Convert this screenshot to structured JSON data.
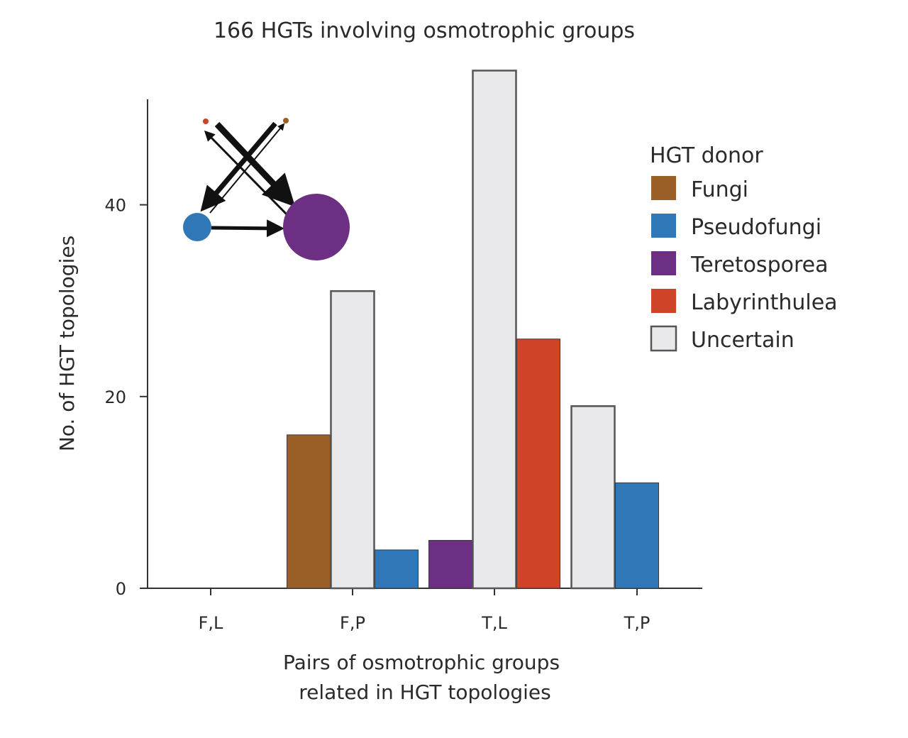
{
  "chart_data": {
    "type": "bar",
    "title": "166 HGTs involving osmotrophic groups",
    "xlabel": "Pairs of osmotrophic groups related in HGT topologies",
    "xlabel_lines": [
      "Pairs of osmotrophic groups",
      "related in HGT topologies"
    ],
    "ylabel": "No. of HGT topologies",
    "ylim": [
      0,
      51
    ],
    "yticks": [
      "0",
      "20",
      "40"
    ],
    "grid": false,
    "legend_position": "right",
    "legend_title": "HGT donor",
    "categories": [
      "F,L",
      "F,P",
      "T,L",
      "T,P"
    ],
    "series": [
      {
        "name": "Fungi",
        "color": "#9a5e27",
        "values": [
          0,
          16,
          0,
          0
        ]
      },
      {
        "name": "Pseudofungi",
        "color": "#2f77b6",
        "values": [
          0,
          4,
          0,
          11
        ]
      },
      {
        "name": "Teretosporea",
        "color": "#6c2f83",
        "values": [
          0,
          0,
          5,
          0
        ]
      },
      {
        "name": "Labyrinthulea",
        "color": "#cf4328",
        "values": [
          0,
          0,
          26,
          0
        ]
      },
      {
        "name": "Uncertain",
        "color": "#e9e9eb",
        "values": [
          0,
          31,
          54,
          19
        ]
      }
    ],
    "bars": [
      {
        "category": "F,P",
        "series": "Fungi",
        "value": 16
      },
      {
        "category": "F,P",
        "series": "Uncertain",
        "value": 31
      },
      {
        "category": "F,P",
        "series": "Pseudofungi",
        "value": 4
      },
      {
        "category": "T,L",
        "series": "Teretosporea",
        "value": 5
      },
      {
        "category": "T,L",
        "series": "Uncertain",
        "value": 54
      },
      {
        "category": "T,L",
        "series": "Labyrinthulea",
        "value": 26
      },
      {
        "category": "T,P",
        "series": "Uncertain",
        "value": 19
      },
      {
        "category": "T,P",
        "series": "Pseudofungi",
        "value": 11
      }
    ],
    "inset_diagram": {
      "description_nodes": [
        {
          "group": "Labyrinthulea",
          "color": "#cf4328",
          "relative_size": "tiny"
        },
        {
          "group": "Fungi",
          "color": "#9a5e27",
          "relative_size": "tiny"
        },
        {
          "group": "Pseudofungi",
          "color": "#2f77b6",
          "relative_size": "small"
        },
        {
          "group": "Teretosporea",
          "color": "#6c2f83",
          "relative_size": "large"
        }
      ]
    }
  }
}
